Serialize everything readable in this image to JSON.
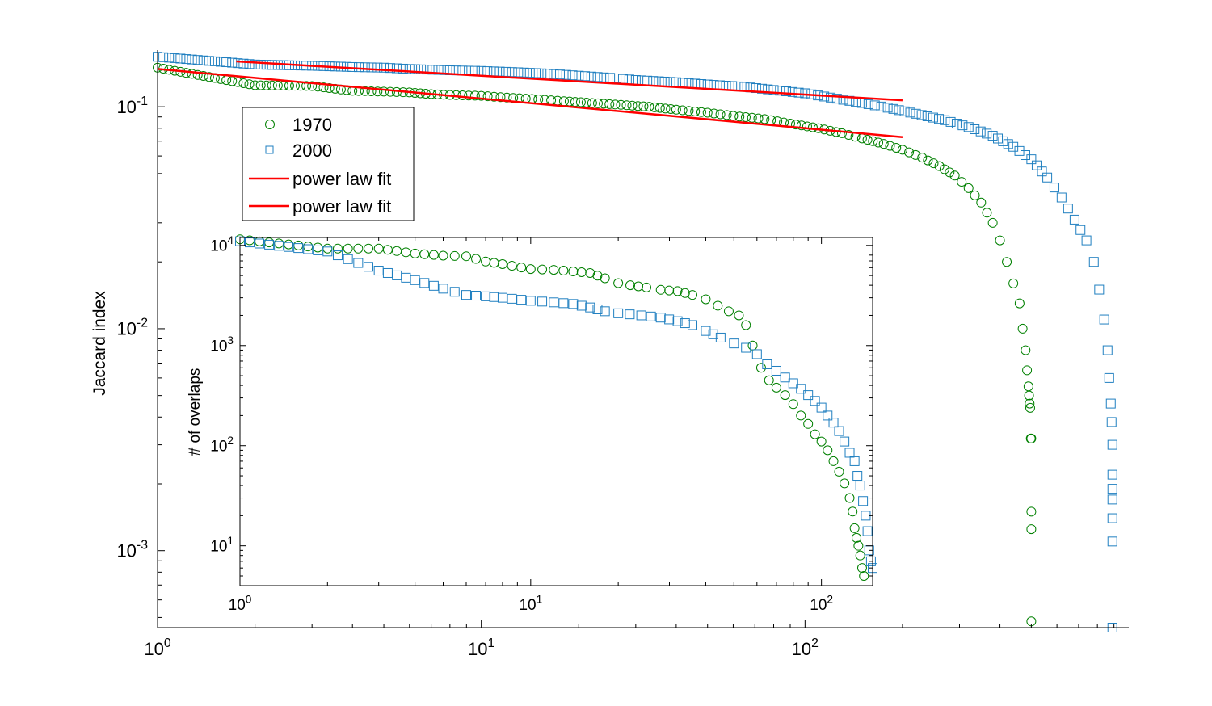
{
  "chart_data": [
    {
      "id": "main",
      "type": "scatter",
      "title": "",
      "xscale": "log",
      "yscale": "log",
      "xlim": [
        1,
        1000
      ],
      "ylim": [
        0.00045,
        0.18
      ],
      "xlabel": "",
      "ylabel": "Jaccard index",
      "x_ticks": [
        {
          "value": 1,
          "base": "10",
          "exp": "0"
        },
        {
          "value": 10,
          "base": "10",
          "exp": "1"
        },
        {
          "value": 100,
          "base": "10",
          "exp": "2"
        }
      ],
      "y_ticks": [
        {
          "value": 0.001,
          "base": "10",
          "exp": "-3"
        },
        {
          "value": 0.01,
          "base": "10",
          "exp": "-2"
        },
        {
          "value": 0.1,
          "base": "10",
          "exp": "-1"
        }
      ],
      "legend": {
        "position": "top-left",
        "entries": [
          {
            "label": "1970",
            "marker": "circle",
            "color": "#008000"
          },
          {
            "label": "2000",
            "marker": "square",
            "color": "#1f7fc0"
          },
          {
            "label": "power law fit",
            "marker": "line",
            "color": "#ff0000"
          },
          {
            "label": "power law fit",
            "marker": "line",
            "color": "#ff0000"
          }
        ]
      },
      "series": [
        {
          "name": "1970",
          "marker": "circle",
          "color": "#008000",
          "points": [
            [
              1,
              0.15
            ],
            [
              2,
              0.125
            ],
            [
              3,
              0.124
            ],
            [
              4,
              0.118
            ],
            [
              5,
              0.117
            ],
            [
              6,
              0.116
            ],
            [
              7,
              0.114
            ],
            [
              8,
              0.113
            ],
            [
              10,
              0.112
            ],
            [
              12,
              0.11
            ],
            [
              15,
              0.108
            ],
            [
              18,
              0.106
            ],
            [
              22,
              0.104
            ],
            [
              27,
              0.102
            ],
            [
              33,
              0.1
            ],
            [
              40,
              0.097
            ],
            [
              50,
              0.094
            ],
            [
              60,
              0.091
            ],
            [
              75,
              0.088
            ],
            [
              90,
              0.084
            ],
            [
              110,
              0.08
            ],
            [
              130,
              0.076
            ],
            [
              150,
              0.072
            ],
            [
              175,
              0.068
            ],
            [
              200,
              0.064
            ],
            [
              230,
              0.059
            ],
            [
              260,
              0.054
            ],
            [
              290,
              0.049
            ],
            [
              320,
              0.043
            ],
            [
              350,
              0.037
            ],
            [
              380,
              0.03
            ],
            [
              400,
              0.025
            ],
            [
              420,
              0.02
            ],
            [
              440,
              0.016
            ],
            [
              460,
              0.013
            ],
            [
              470,
              0.01
            ],
            [
              480,
              0.008
            ],
            [
              485,
              0.0065
            ],
            [
              490,
              0.0055
            ],
            [
              492,
              0.005
            ],
            [
              494,
              0.0046
            ],
            [
              496,
              0.0044
            ],
            [
              498,
              0.0032
            ],
            [
              500,
              0.0032
            ],
            [
              500,
              0.0015
            ],
            [
              500,
              0.00125
            ],
            [
              500,
              0.00048
            ]
          ]
        },
        {
          "name": "2000",
          "marker": "square",
          "color": "#1f7fc0",
          "points": [
            [
              1,
              0.168
            ],
            [
              2,
              0.155
            ],
            [
              3,
              0.153
            ],
            [
              4,
              0.151
            ],
            [
              5,
              0.15
            ],
            [
              6,
              0.148
            ],
            [
              8,
              0.146
            ],
            [
              10,
              0.145
            ],
            [
              13,
              0.143
            ],
            [
              16,
              0.141
            ],
            [
              20,
              0.138
            ],
            [
              25,
              0.135
            ],
            [
              30,
              0.132
            ],
            [
              40,
              0.129
            ],
            [
              50,
              0.126
            ],
            [
              65,
              0.123
            ],
            [
              80,
              0.119
            ],
            [
              100,
              0.115
            ],
            [
              120,
              0.11
            ],
            [
              150,
              0.104
            ],
            [
              180,
              0.099
            ],
            [
              220,
              0.093
            ],
            [
              270,
              0.087
            ],
            [
              320,
              0.081
            ],
            [
              380,
              0.074
            ],
            [
              440,
              0.066
            ],
            [
              500,
              0.058
            ],
            [
              560,
              0.048
            ],
            [
              620,
              0.039
            ],
            [
              680,
              0.031
            ],
            [
              740,
              0.025
            ],
            [
              780,
              0.02
            ],
            [
              810,
              0.015
            ],
            [
              840,
              0.011
            ],
            [
              860,
              0.008
            ],
            [
              870,
              0.006
            ],
            [
              880,
              0.0046
            ],
            [
              885,
              0.0038
            ],
            [
              890,
              0.003
            ],
            [
              890,
              0.0022
            ],
            [
              890,
              0.0019
            ],
            [
              890,
              0.0017
            ],
            [
              890,
              0.0014
            ],
            [
              890,
              0.0011
            ],
            [
              890,
              0.00045
            ]
          ]
        }
      ],
      "fits": [
        {
          "name": "power law fit",
          "color": "#ff0000",
          "x": [
            1.75,
            200
          ],
          "y": [
            0.16,
            0.107
          ]
        },
        {
          "name": "power law fit",
          "color": "#ff0000",
          "x": [
            1,
            200
          ],
          "y": [
            0.148,
            0.073
          ]
        }
      ]
    },
    {
      "id": "inset",
      "type": "scatter",
      "title": "",
      "xscale": "log",
      "yscale": "log",
      "xlim": [
        1,
        150
      ],
      "ylim": [
        4,
        12000
      ],
      "xlabel": "",
      "ylabel": "# of overlaps",
      "x_ticks": [
        {
          "value": 1,
          "base": "10",
          "exp": "0"
        },
        {
          "value": 10,
          "base": "10",
          "exp": "1"
        },
        {
          "value": 100,
          "base": "10",
          "exp": "2"
        }
      ],
      "y_ticks": [
        {
          "value": 10,
          "base": "10",
          "exp": "1"
        },
        {
          "value": 100,
          "base": "10",
          "exp": "2"
        },
        {
          "value": 1000,
          "base": "10",
          "exp": "3"
        },
        {
          "value": 10000,
          "base": "10",
          "exp": "4"
        }
      ],
      "series": [
        {
          "name": "1970",
          "marker": "circle",
          "color": "#008000",
          "points": [
            [
              1,
              11500
            ],
            [
              2,
              9300
            ],
            [
              3,
              9300
            ],
            [
              4,
              8300
            ],
            [
              5,
              7900
            ],
            [
              6,
              7800
            ],
            [
              7,
              6900
            ],
            [
              8,
              6500
            ],
            [
              10,
              5800
            ],
            [
              12,
              5700
            ],
            [
              14,
              5500
            ],
            [
              16,
              5300
            ],
            [
              18,
              4700
            ],
            [
              20,
              4200
            ],
            [
              22,
              4000
            ],
            [
              25,
              3800
            ],
            [
              28,
              3600
            ],
            [
              32,
              3500
            ],
            [
              36,
              3200
            ],
            [
              40,
              2900
            ],
            [
              44,
              2500
            ],
            [
              48,
              2200
            ],
            [
              52,
              2000
            ],
            [
              55,
              1600
            ],
            [
              58,
              1000
            ],
            [
              62,
              600
            ],
            [
              66,
              450
            ],
            [
              70,
              380
            ],
            [
              75,
              320
            ],
            [
              80,
              260
            ],
            [
              85,
              200
            ],
            [
              90,
              165
            ],
            [
              95,
              130
            ],
            [
              100,
              110
            ],
            [
              105,
              90
            ],
            [
              110,
              70
            ],
            [
              115,
              55
            ],
            [
              120,
              42
            ],
            [
              125,
              30
            ],
            [
              128,
              22
            ],
            [
              130,
              15
            ],
            [
              132,
              12
            ],
            [
              134,
              10
            ],
            [
              136,
              8
            ],
            [
              138,
              6
            ],
            [
              140,
              5
            ]
          ]
        },
        {
          "name": "2000",
          "marker": "square",
          "color": "#1f7fc0",
          "points": [
            [
              1,
              11000
            ],
            [
              2,
              8700
            ],
            [
              3,
              5600
            ],
            [
              4,
              4500
            ],
            [
              5,
              3700
            ],
            [
              6,
              3200
            ],
            [
              7,
              3100
            ],
            [
              8,
              3000
            ],
            [
              10,
              2800
            ],
            [
              12,
              2700
            ],
            [
              14,
              2600
            ],
            [
              16,
              2400
            ],
            [
              18,
              2200
            ],
            [
              20,
              2100
            ],
            [
              24,
              2000
            ],
            [
              28,
              1900
            ],
            [
              32,
              1750
            ],
            [
              36,
              1600
            ],
            [
              40,
              1400
            ],
            [
              45,
              1200
            ],
            [
              50,
              1050
            ],
            [
              55,
              950
            ],
            [
              60,
              820
            ],
            [
              65,
              650
            ],
            [
              70,
              560
            ],
            [
              75,
              480
            ],
            [
              80,
              420
            ],
            [
              85,
              370
            ],
            [
              90,
              320
            ],
            [
              95,
              280
            ],
            [
              100,
              240
            ],
            [
              105,
              200
            ],
            [
              110,
              170
            ],
            [
              115,
              140
            ],
            [
              120,
              110
            ],
            [
              125,
              85
            ],
            [
              130,
              70
            ],
            [
              133,
              50
            ],
            [
              136,
              40
            ],
            [
              139,
              28
            ],
            [
              142,
              20
            ],
            [
              144,
              14
            ],
            [
              146,
              9
            ],
            [
              148,
              7
            ],
            [
              150,
              6
            ]
          ]
        }
      ]
    }
  ]
}
